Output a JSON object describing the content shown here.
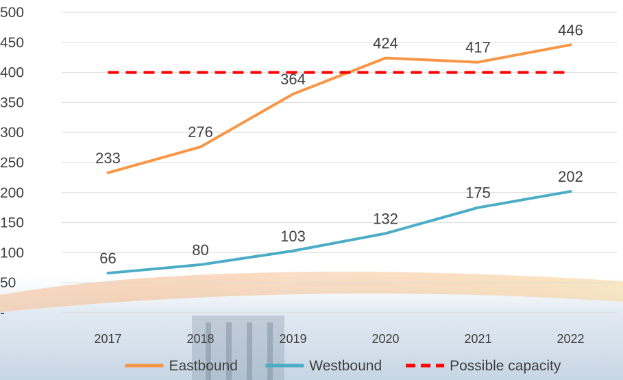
{
  "chart_data": {
    "type": "line",
    "categories": [
      "2017",
      "2018",
      "2019",
      "2020",
      "2021",
      "2022"
    ],
    "y_ticks": [
      "-",
      "50",
      "100",
      "150",
      "200",
      "250",
      "300",
      "350",
      "400",
      "450",
      "500"
    ],
    "ylim": [
      0,
      500
    ],
    "grid": true,
    "legend_position": "bottom",
    "series": [
      {
        "name": "Eastbound",
        "values": [
          233,
          276,
          364,
          424,
          417,
          446
        ],
        "color": "#f79646",
        "style": "solid",
        "labels": true
      },
      {
        "name": "Westbound",
        "values": [
          66,
          80,
          103,
          132,
          175,
          202
        ],
        "color": "#4bacc6",
        "style": "solid",
        "labels": true
      },
      {
        "name": "Possible capacity",
        "values": [
          400,
          400,
          400,
          400,
          400,
          400
        ],
        "color": "#ff0000",
        "style": "dashed",
        "labels": false
      }
    ]
  }
}
